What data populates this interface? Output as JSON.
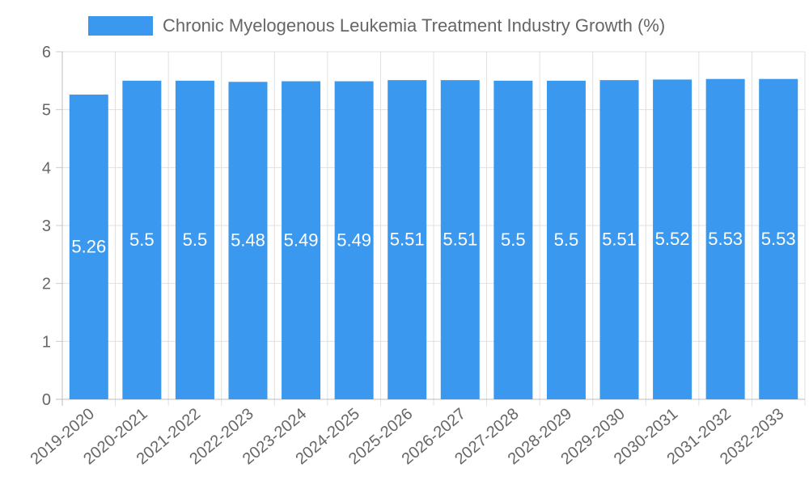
{
  "chart_data": {
    "type": "bar",
    "legend": "Chronic Myelogenous Leukemia Treatment Industry Growth (%)",
    "legend_position": "top",
    "categories": [
      "2019-2020",
      "2020-2021",
      "2021-2022",
      "2022-2023",
      "2023-2024",
      "2024-2025",
      "2025-2026",
      "2026-2027",
      "2027-2028",
      "2028-2029",
      "2029-2030",
      "2030-2031",
      "2031-2032",
      "2032-2033"
    ],
    "series": [
      {
        "name": "Chronic Myelogenous Leukemia Treatment Industry Growth (%)",
        "values": [
          5.26,
          5.5,
          5.5,
          5.48,
          5.49,
          5.49,
          5.51,
          5.51,
          5.5,
          5.5,
          5.51,
          5.52,
          5.53,
          5.53
        ]
      }
    ],
    "ylim": [
      0,
      6
    ],
    "yticks": [
      0,
      1,
      2,
      3,
      4,
      5,
      6
    ],
    "grid": true,
    "xlabel": "",
    "ylabel": "",
    "color": "#3a99ee"
  }
}
